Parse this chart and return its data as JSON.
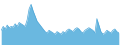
{
  "values": [
    22,
    28,
    24,
    30,
    26,
    28,
    27,
    32,
    28,
    34,
    32,
    30,
    28,
    38,
    55,
    62,
    52,
    44,
    36,
    32,
    28,
    24,
    20,
    18,
    22,
    20,
    18,
    16,
    20,
    18,
    16,
    20,
    18,
    22,
    24,
    22,
    20,
    24,
    26,
    24,
    20,
    18,
    22,
    24,
    26,
    24,
    22,
    18,
    40,
    30,
    20,
    16,
    18,
    22,
    20,
    18,
    22,
    24,
    20,
    18
  ],
  "line_color": "#4da6d8",
  "fill_color": "#6ab8e0",
  "background_color": "#ffffff",
  "ylim_min": 0,
  "ylim_max": 68
}
